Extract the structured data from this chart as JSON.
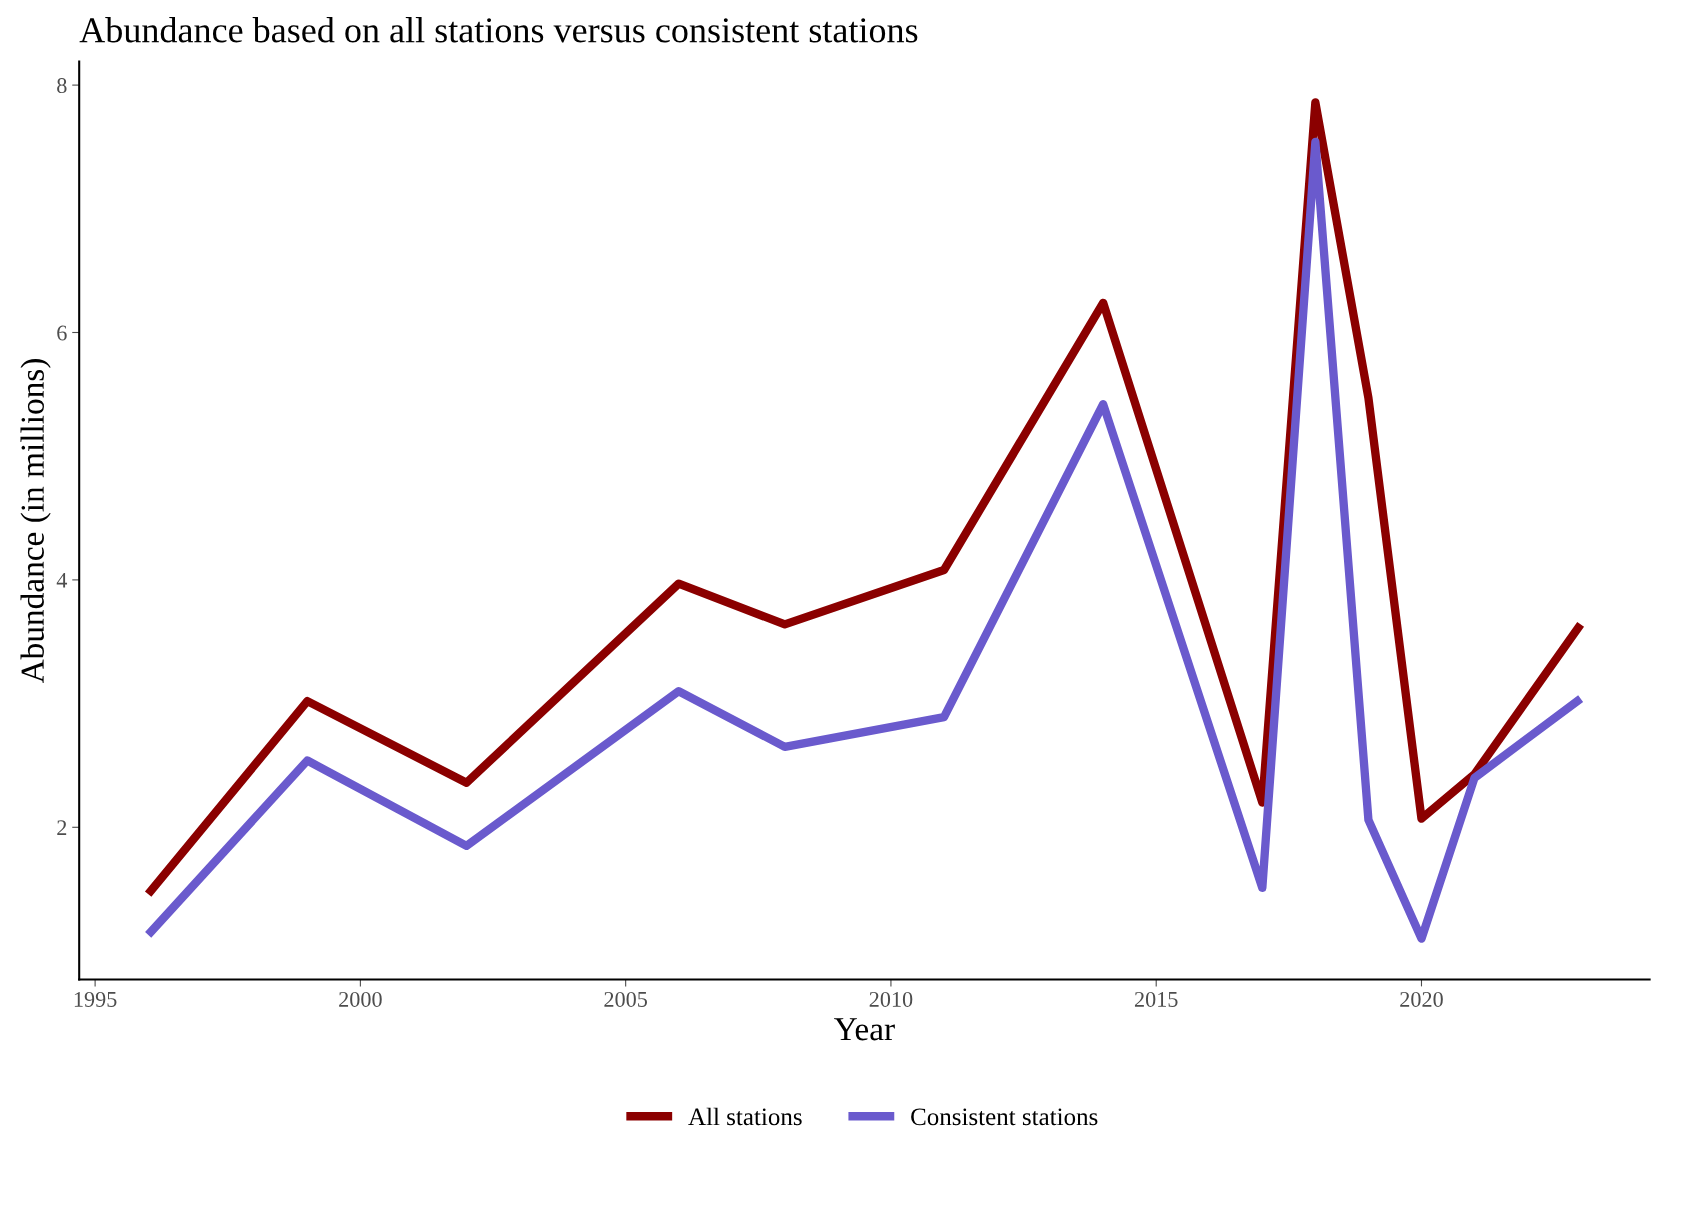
{
  "chart_data": {
    "type": "line",
    "title": "Abundance based on all stations versus consistent stations",
    "xlabel": "Year",
    "ylabel": "Abundance (in millions)",
    "x": [
      1996,
      1999,
      2002,
      2006,
      2008,
      2011,
      2014,
      2017,
      2018,
      2019,
      2020,
      2021,
      2023
    ],
    "series": [
      {
        "name": "All stations",
        "color": "#8b0000",
        "values": [
          1.46,
          3.02,
          2.36,
          3.97,
          3.64,
          4.08,
          6.24,
          2.2,
          7.86,
          5.47,
          2.07,
          2.43,
          3.64
        ]
      },
      {
        "name": "Consistent stations",
        "color": "#6a5acd",
        "values": [
          1.13,
          2.54,
          1.85,
          3.1,
          2.65,
          2.89,
          5.42,
          1.51,
          7.54,
          2.06,
          1.1,
          2.4,
          3.04
        ]
      }
    ],
    "xlim": [
      1994.7,
      2024.3
    ],
    "ylim": [
      0.77,
      8.19
    ],
    "xticks": [
      1995,
      2000,
      2005,
      2010,
      2015,
      2020
    ],
    "yticks": [
      2,
      4,
      6,
      8
    ],
    "grid": false,
    "legend": "bottom",
    "marker": "none",
    "line_style": "solid"
  }
}
